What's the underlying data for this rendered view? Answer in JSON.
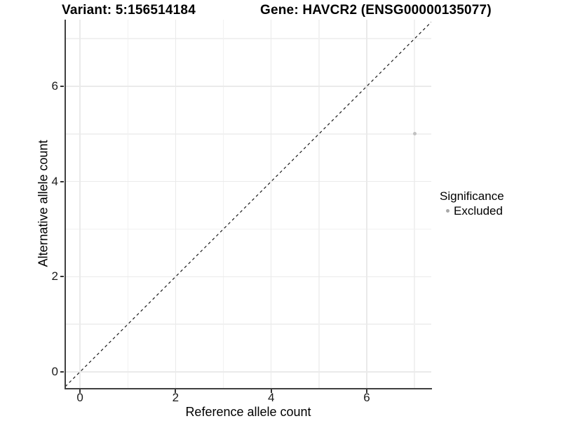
{
  "header": {
    "variant_title": "Variant: 5:156514184",
    "gene_title": "Gene: HAVCR2 (ENSG00000135077)"
  },
  "chart_data": {
    "type": "scatter",
    "xlabel": "Reference allele count",
    "ylabel": "Alternative allele count",
    "xlim": [
      -0.31,
      7.35
    ],
    "ylim": [
      -0.34,
      7.4
    ],
    "x_ticks": [
      0,
      2,
      4,
      6
    ],
    "y_ticks": [
      0,
      2,
      4,
      6
    ],
    "x_minor_gridlines": [
      1,
      3,
      5,
      7
    ],
    "y_minor_gridlines": [
      1,
      3,
      5,
      7
    ],
    "grid": true,
    "background": "#ffffff",
    "gridline_color_major": "#eaeaea",
    "gridline_color_minor": "#f1f1f1",
    "axis_line_color": "#404040",
    "points": [
      {
        "x": 7,
        "y": 5,
        "series": "Excluded",
        "color": "#c1c1c1"
      }
    ],
    "reference_line": {
      "slope": 1,
      "intercept": 0,
      "style": "dashed",
      "color": "#1a1a1a"
    },
    "legend": {
      "title": "Significance",
      "position": "right",
      "entries": [
        {
          "label": "Excluded",
          "color": "#a8a8a8"
        }
      ]
    }
  }
}
